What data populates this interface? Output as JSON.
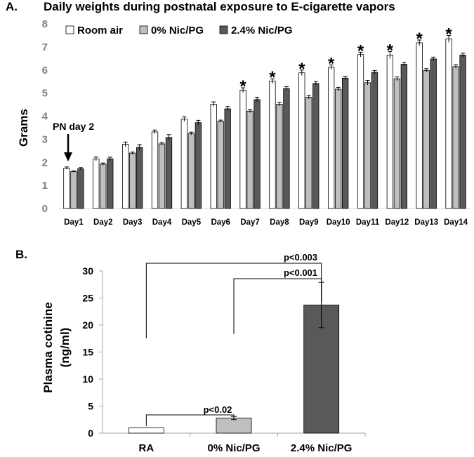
{
  "chart_data": [
    {
      "panel_label": "A.",
      "type": "bar",
      "title": "Daily weights during postnatal exposure to E-cigarette vapors",
      "ylabel": "Grams",
      "ylim": [
        0,
        8
      ],
      "yticks": [
        "0",
        "1",
        "2",
        "3",
        "4",
        "5",
        "6",
        "7",
        "8"
      ],
      "categories": [
        "Day1",
        "Day2",
        "Day3",
        "Day4",
        "Day5",
        "Day6",
        "Day7",
        "Day8",
        "Day9",
        "Day10",
        "Day11",
        "Day12",
        "Day13",
        "Day14"
      ],
      "series": [
        {
          "name": "Room air",
          "color": "#ffffff",
          "values": [
            1.75,
            2.15,
            2.78,
            3.32,
            3.87,
            4.52,
            5.13,
            5.52,
            5.88,
            6.12,
            6.67,
            6.65,
            7.18,
            7.35
          ],
          "errors": [
            0.05,
            0.08,
            0.1,
            0.08,
            0.1,
            0.1,
            0.1,
            0.1,
            0.12,
            0.1,
            0.1,
            0.15,
            0.12,
            0.15
          ]
        },
        {
          "name": "0% Nic/PG",
          "color": "#bfbfbf",
          "values": [
            1.6,
            1.92,
            2.4,
            2.8,
            3.25,
            3.78,
            4.22,
            4.52,
            4.82,
            5.17,
            5.45,
            5.62,
            5.98,
            6.15
          ],
          "errors": [
            0.03,
            0.05,
            0.05,
            0.06,
            0.06,
            0.05,
            0.07,
            0.08,
            0.08,
            0.08,
            0.1,
            0.08,
            0.08,
            0.08
          ]
        },
        {
          "name": "2.4% Nic/PG",
          "color": "#595959",
          "values": [
            1.72,
            2.15,
            2.65,
            3.08,
            3.72,
            4.32,
            4.72,
            5.2,
            5.42,
            5.65,
            5.9,
            6.25,
            6.48,
            6.65
          ],
          "errors": [
            0.05,
            0.07,
            0.12,
            0.12,
            0.1,
            0.1,
            0.1,
            0.08,
            0.08,
            0.08,
            0.08,
            0.08,
            0.08,
            0.08
          ]
        }
      ],
      "significance_marker": "*",
      "significant_days": [
        "Day7",
        "Day8",
        "Day9",
        "Day10",
        "Day11",
        "Day12",
        "Day13",
        "Day14"
      ],
      "annotation": {
        "text": "PN day 2",
        "points_to": "Day1"
      },
      "legend_placement": "top-left",
      "grid": false
    },
    {
      "panel_label": "B.",
      "type": "bar",
      "ylabel": "Plasma cotinine (ng/ml)",
      "ylabel_lines": [
        "Plasma cotinine",
        "(ng/ml)"
      ],
      "ylim": [
        0,
        30
      ],
      "yticks": [
        "0",
        "5",
        "10",
        "15",
        "20",
        "25",
        "30"
      ],
      "categories": [
        "RA",
        "0% Nic/PG",
        "2.4% Nic/PG"
      ],
      "values": [
        1.0,
        2.8,
        23.7
      ],
      "errors": [
        0,
        0.3,
        4.2
      ],
      "colors": [
        "#ffffff",
        "#bfbfbf",
        "#595959"
      ],
      "comparisons": [
        {
          "groups": [
            "RA",
            "2.4% Nic/PG"
          ],
          "label": "p<0.003"
        },
        {
          "groups": [
            "0% Nic/PG",
            "2.4% Nic/PG"
          ],
          "label": "p<0.001"
        },
        {
          "groups": [
            "RA",
            "0% Nic/PG"
          ],
          "label": "p<0.02"
        }
      ],
      "grid": false
    }
  ]
}
